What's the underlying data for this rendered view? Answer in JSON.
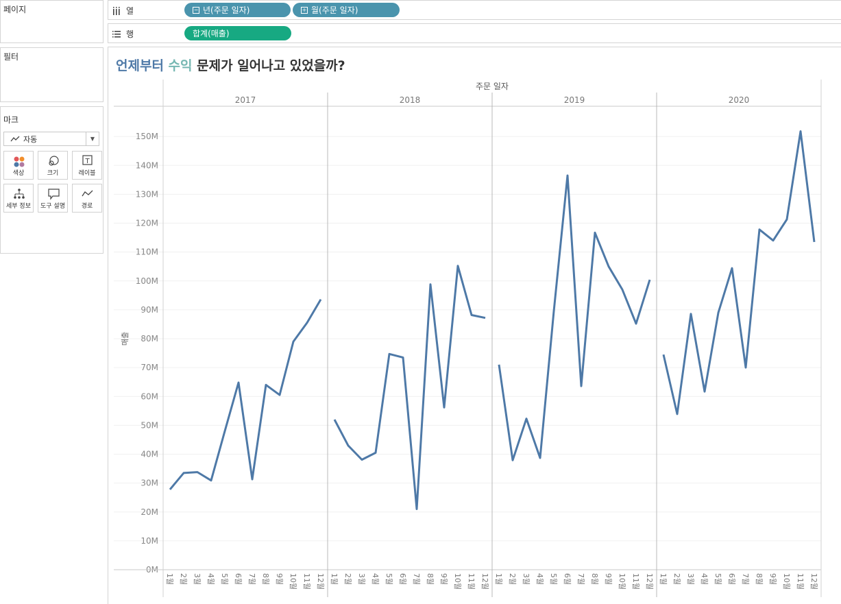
{
  "left_panels": {
    "pages_title": "페이지",
    "filters_title": "필터",
    "marks_title": "마크",
    "mark_type": "자동",
    "buttons": [
      {
        "label": "색상",
        "icon": "color-icon"
      },
      {
        "label": "크기",
        "icon": "size-icon"
      },
      {
        "label": "레이블",
        "icon": "label-icon"
      },
      {
        "label": "세부 정보",
        "icon": "detail-icon"
      },
      {
        "label": "도구 설명",
        "icon": "tooltip-icon"
      },
      {
        "label": "경로",
        "icon": "path-icon"
      }
    ]
  },
  "shelves": {
    "columns_label": "열",
    "rows_label": "행",
    "column_pills": [
      {
        "label": "년(주문 일자)",
        "symbol": "−"
      },
      {
        "label": "월(주문 일자)",
        "symbol": "+"
      }
    ],
    "row_pill": "합계(매출)"
  },
  "title": {
    "part1": "언제부터",
    "part2": "수익",
    "part3": "문제가 일어나고 있었을까?",
    "color1": "#4e79a7",
    "color2": "#76b7b2",
    "color3": "#333333"
  },
  "chart_data": {
    "type": "line",
    "top_header": "주문 일자",
    "ylabel": "매출",
    "ylim": [
      0,
      160
    ],
    "yticks": [
      0,
      10,
      20,
      30,
      40,
      50,
      60,
      70,
      80,
      90,
      100,
      110,
      120,
      130,
      140,
      150
    ],
    "ytick_labels": [
      "0M",
      "10M",
      "20M",
      "30M",
      "40M",
      "50M",
      "60M",
      "70M",
      "80M",
      "90M",
      "100M",
      "110M",
      "120M",
      "130M",
      "140M",
      "150M"
    ],
    "month_labels": [
      "1월",
      "2월",
      "3월",
      "4월",
      "5월",
      "6월",
      "7월",
      "8월",
      "9월",
      "10월",
      "11월",
      "12월"
    ],
    "line_color": "#4e79a7",
    "series": [
      {
        "year": "2017",
        "values": [
          27.8,
          33.5,
          33.8,
          30.9,
          48.0,
          64.8,
          31.3,
          64.0,
          60.5,
          79.0,
          85.5,
          93.6
        ]
      },
      {
        "year": "2018",
        "values": [
          52.0,
          43.0,
          38.1,
          40.5,
          74.7,
          73.5,
          21.0,
          98.8,
          56.2,
          105.2,
          88.2,
          87.2
        ]
      },
      {
        "year": "2019",
        "values": [
          71.0,
          37.9,
          52.3,
          38.7,
          89.5,
          136.5,
          63.6,
          116.7,
          105.0,
          97.0,
          85.2,
          100.4
        ]
      },
      {
        "year": "2020",
        "values": [
          74.5,
          53.9,
          88.6,
          61.7,
          89.0,
          104.4,
          70.0,
          117.8,
          114.0,
          121.3,
          151.8,
          113.5
        ]
      }
    ]
  }
}
